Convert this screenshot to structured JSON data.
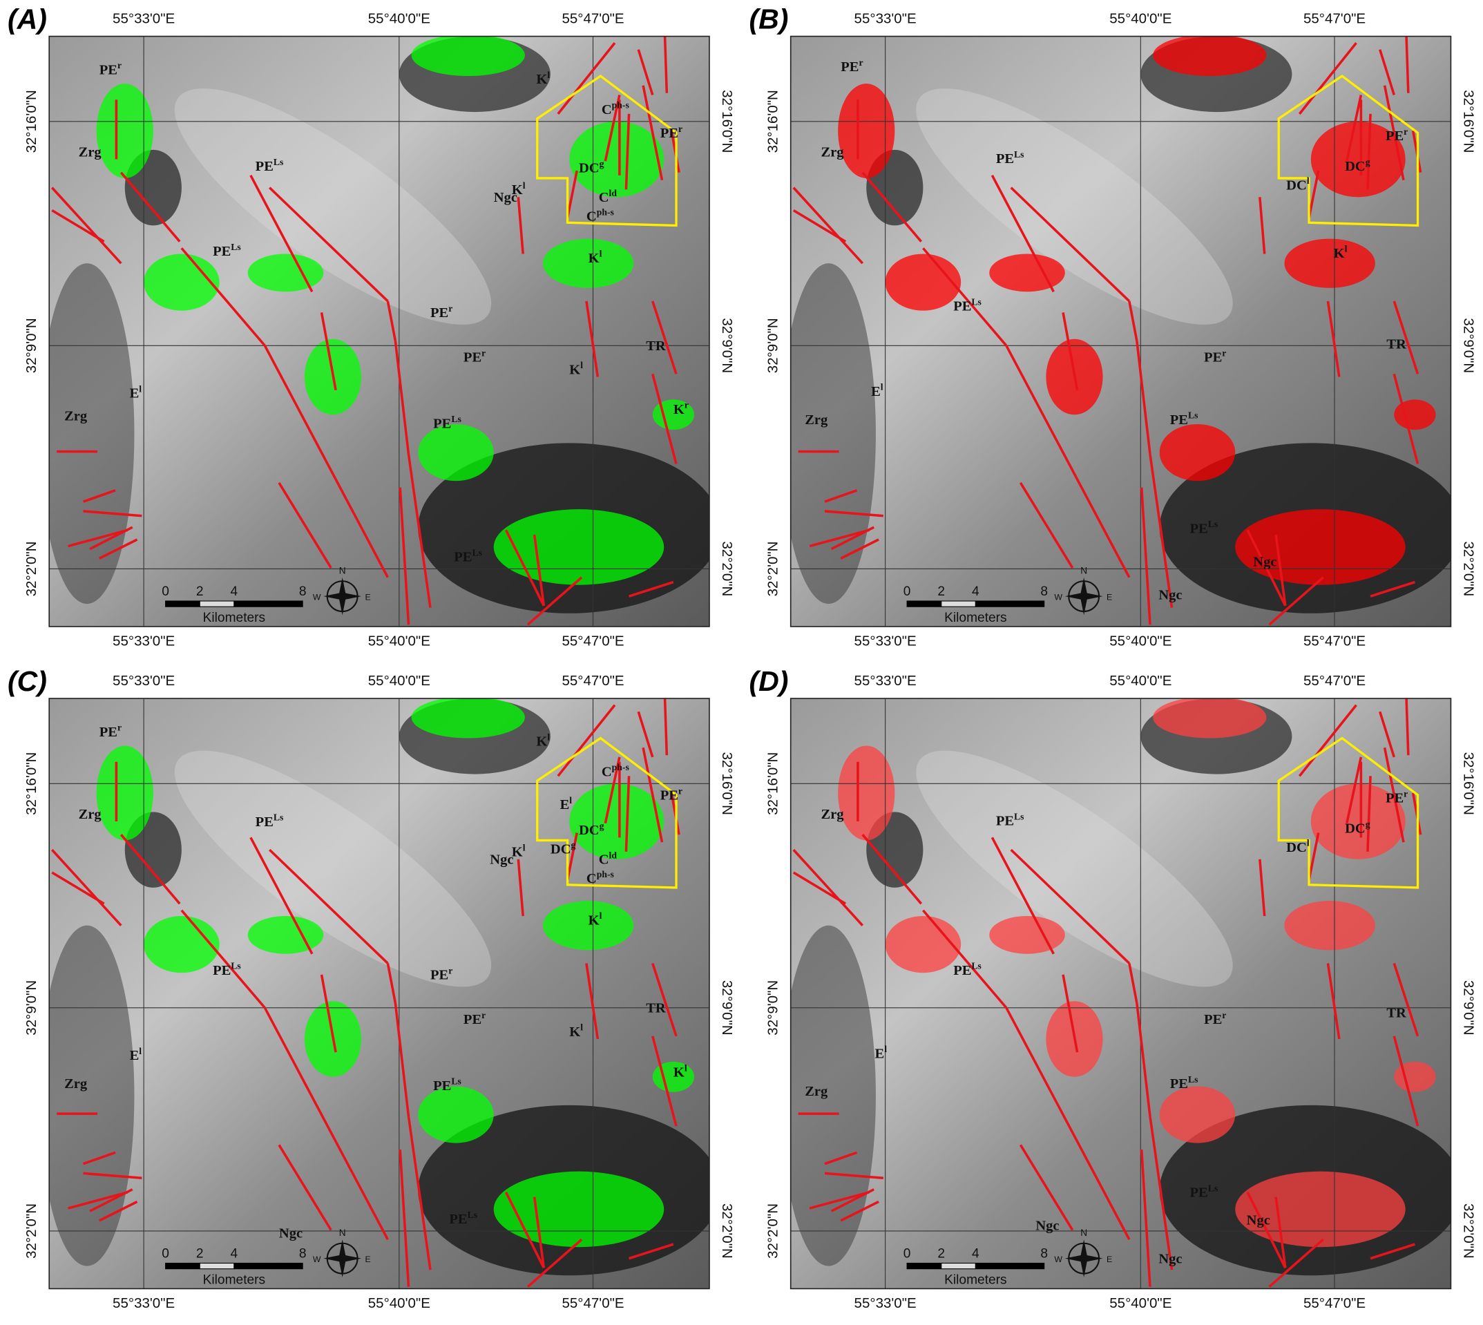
{
  "figure": {
    "x_labels": [
      "55°33'0\"E",
      "55°40'0\"E",
      "55°47'0\"E"
    ],
    "y_labels": [
      "32°16'0\"N",
      "32°9'0\"N",
      "32°2'0\"N"
    ],
    "scale_bar": {
      "ticks": [
        0,
        2,
        4,
        8
      ],
      "unit": "Kilometers"
    },
    "compass": {
      "north": "N",
      "west": "W",
      "east": "E"
    },
    "panels": [
      {
        "label": "(A)",
        "highlight_color": "#00ff00",
        "map_labels": [
          {
            "text": "PE",
            "sup": "r"
          },
          {
            "text": "Zrg"
          },
          {
            "text": "PE",
            "sup": "Ls"
          },
          {
            "text": "PE",
            "sup": "Ls"
          },
          {
            "text": "K",
            "sup": "l"
          },
          {
            "text": "C",
            "sup": "ph-s"
          },
          {
            "text": "PE",
            "sup": "r"
          },
          {
            "text": "DC",
            "sup": "g"
          },
          {
            "text": "Ngc"
          },
          {
            "text": "K",
            "sup": "l"
          },
          {
            "text": "C",
            "sup": "ld"
          },
          {
            "text": "C",
            "sup": "ph-s"
          },
          {
            "text": "K",
            "sup": "l"
          },
          {
            "text": "PE",
            "sup": "r"
          },
          {
            "text": "PE",
            "sup": "r"
          },
          {
            "text": "K",
            "sup": "l"
          },
          {
            "text": "TR"
          },
          {
            "text": "E",
            "sup": "l"
          },
          {
            "text": "Zrg"
          },
          {
            "text": "K",
            "sup": "r"
          },
          {
            "text": "PE",
            "sup": "Ls"
          },
          {
            "text": "PE",
            "sup": "Ls"
          }
        ]
      },
      {
        "label": "(B)",
        "highlight_color": "#ff0000",
        "map_labels": [
          {
            "text": "PE",
            "sup": "r"
          },
          {
            "text": "Zrg"
          },
          {
            "text": "PE",
            "sup": "Ls"
          },
          {
            "text": "DC",
            "sup": "g"
          },
          {
            "text": "PE",
            "sup": "r"
          },
          {
            "text": "DC",
            "sup": "l"
          },
          {
            "text": "K",
            "sup": "l"
          },
          {
            "text": "PE",
            "sup": "Ls"
          },
          {
            "text": "PE",
            "sup": "r"
          },
          {
            "text": "TR"
          },
          {
            "text": "E",
            "sup": "l"
          },
          {
            "text": "Zrg"
          },
          {
            "text": "PE",
            "sup": "Ls"
          },
          {
            "text": "PE",
            "sup": "Ls"
          },
          {
            "text": "Ngc"
          },
          {
            "text": "Ngc"
          }
        ]
      },
      {
        "label": "(C)",
        "highlight_color": "#00ff00",
        "map_labels": [
          {
            "text": "PE",
            "sup": "r"
          },
          {
            "text": "K",
            "sup": "l"
          },
          {
            "text": "C",
            "sup": "ph-s"
          },
          {
            "text": "PE",
            "sup": "r"
          },
          {
            "text": "E",
            "sup": "l"
          },
          {
            "text": "Zrg"
          },
          {
            "text": "PE",
            "sup": "Ls"
          },
          {
            "text": "DC",
            "sup": "g"
          },
          {
            "text": "Ngc"
          },
          {
            "text": "K",
            "sup": "l"
          },
          {
            "text": "DC",
            "sup": "g"
          },
          {
            "text": "C",
            "sup": "ld"
          },
          {
            "text": "C",
            "sup": "ph-s"
          },
          {
            "text": "K",
            "sup": "l"
          },
          {
            "text": "PE",
            "sup": "Ls"
          },
          {
            "text": "PE",
            "sup": "r"
          },
          {
            "text": "PE",
            "sup": "r"
          },
          {
            "text": "K",
            "sup": "l"
          },
          {
            "text": "TR"
          },
          {
            "text": "E",
            "sup": "l"
          },
          {
            "text": "Zrg"
          },
          {
            "text": "K",
            "sup": "l"
          },
          {
            "text": "PE",
            "sup": "Ls"
          },
          {
            "text": "PE",
            "sup": "Ls"
          },
          {
            "text": "Ngc"
          }
        ]
      },
      {
        "label": "(D)",
        "highlight_color": "#ff4040",
        "map_labels": [
          {
            "text": "Zrg"
          },
          {
            "text": "PE",
            "sup": "Ls"
          },
          {
            "text": "PE",
            "sup": "r"
          },
          {
            "text": "DC",
            "sup": "g"
          },
          {
            "text": "DC",
            "sup": "l"
          },
          {
            "text": "PE",
            "sup": "Ls"
          },
          {
            "text": "PE",
            "sup": "r"
          },
          {
            "text": "TR"
          },
          {
            "text": "E",
            "sup": "l"
          },
          {
            "text": "Zrg"
          },
          {
            "text": "PE",
            "sup": "Ls"
          },
          {
            "text": "PE",
            "sup": "Ls"
          },
          {
            "text": "Ngc"
          },
          {
            "text": "Ngc"
          },
          {
            "text": "Ngc"
          }
        ]
      }
    ]
  }
}
